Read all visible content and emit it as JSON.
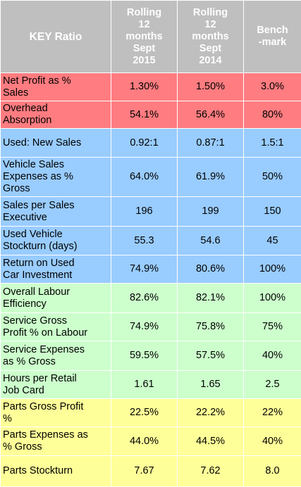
{
  "header": {
    "key_ratio": "KEY Ratio",
    "col2": "Rolling\n12\nmonths\nSept\n2015",
    "col3": "Rolling\n12\nmonths\nSept\n2014",
    "col4": "Bench\n-mark"
  },
  "colors": {
    "header": "#bfbfbf",
    "red": "#ff7c80",
    "blue": "#99ccff",
    "green": "#ccffcc",
    "yellow": "#ffff99"
  },
  "rows": [
    {
      "label": "Net Profit as %\nSales",
      "v2015": "1.30%",
      "v2014": "1.50%",
      "bench": "3.0%",
      "group": "red",
      "h": 40
    },
    {
      "label": "Overhead\nAbsorption",
      "v2015": "54.1%",
      "v2014": "56.4%",
      "bench": "80%",
      "group": "red",
      "h": 39
    },
    {
      "label": "Used: New Sales",
      "v2015": "0.92:1",
      "v2014": "0.87:1",
      "bench": "1.5:1",
      "group": "blue",
      "h": 41
    },
    {
      "label": "Vehicle Sales\nExpenses as %\nGross",
      "v2015": "64.0%",
      "v2014": "61.9%",
      "bench": "50%",
      "group": "blue",
      "h": 56
    },
    {
      "label": "Sales per Sales\nExecutive",
      "v2015": "196",
      "v2014": "199",
      "bench": "150",
      "group": "blue",
      "h": 42
    },
    {
      "label": "Used Vehicle\nStockturn (days)",
      "v2015": "55.3",
      "v2014": "54.6",
      "bench": "45",
      "group": "blue",
      "h": 41
    },
    {
      "label": "Return on Used\nCar Investment",
      "v2015": "74.9%",
      "v2014": "80.6%",
      "bench": "100%",
      "group": "blue",
      "h": 40
    },
    {
      "label": "Overall Labour\nEfficiency",
      "v2015": "82.6%",
      "v2014": "82.1%",
      "bench": "100%",
      "group": "green",
      "h": 42
    },
    {
      "label": "Service Gross\nProfit % on Labour",
      "v2015": "74.9%",
      "v2014": "75.8%",
      "bench": "75%",
      "group": "green",
      "h": 40
    },
    {
      "label": "Service Expenses\nas % Gross",
      "v2015": "59.5%",
      "v2014": "57.5%",
      "bench": "40%",
      "group": "green",
      "h": 42
    },
    {
      "label": "Hours per Retail\nJob Card",
      "v2015": "1.61",
      "v2014": "1.65",
      "bench": "2.5",
      "group": "green",
      "h": 40
    },
    {
      "label": "Parts Gross Profit\n%",
      "v2015": "22.5%",
      "v2014": "22.2%",
      "bench": "22%",
      "group": "yellow",
      "h": 40
    },
    {
      "label": "Parts Expenses as\n% Gross",
      "v2015": "44.0%",
      "v2014": "44.5%",
      "bench": "40%",
      "group": "yellow",
      "h": 41
    },
    {
      "label": "Parts Stockturn",
      "v2015": "7.67",
      "v2014": "7.62",
      "bench": "8.0",
      "group": "yellow",
      "h": 44
    }
  ]
}
